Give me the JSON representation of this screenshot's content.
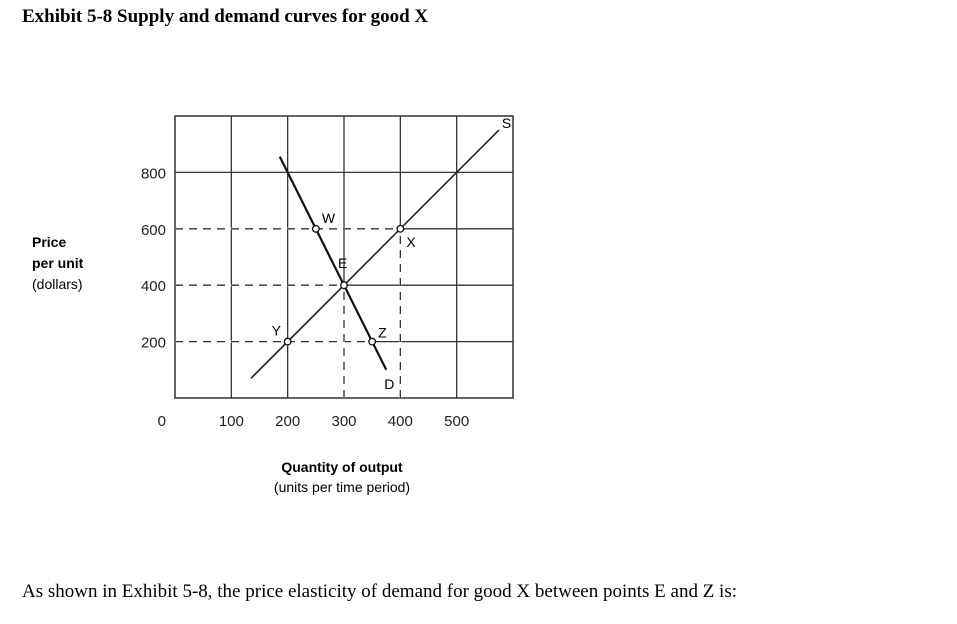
{
  "title": "Exhibit 5-8 Supply and demand curves for good X",
  "question": "As shown in Exhibit 5-8, the price elasticity of demand for good X between points E and Z is:",
  "chart_data": {
    "type": "line",
    "ylabel": [
      "Price",
      "per unit",
      "(dollars)"
    ],
    "xlabel": [
      "Quantity of output",
      "(units per time period)"
    ],
    "xlim": [
      0,
      600
    ],
    "ylim": [
      0,
      1000
    ],
    "x_ticks": [
      100,
      200,
      300,
      400,
      500
    ],
    "y_ticks": [
      200,
      400,
      600,
      800
    ],
    "origin_label": "0",
    "grid": true,
    "series": [
      {
        "name": "S",
        "points": [
          [
            135,
            70
          ],
          [
            575,
            950
          ]
        ]
      },
      {
        "name": "D",
        "points": [
          [
            186,
            856
          ],
          [
            375,
            100
          ]
        ]
      }
    ],
    "points": [
      {
        "label": "W",
        "x": 250,
        "y": 600
      },
      {
        "label": "E",
        "x": 300,
        "y": 400
      },
      {
        "label": "X",
        "x": 400,
        "y": 600
      },
      {
        "label": "Y",
        "x": 200,
        "y": 200
      },
      {
        "label": "Z",
        "x": 350,
        "y": 200
      }
    ],
    "dashed_guides": [
      {
        "y": 600,
        "x_to": 400
      },
      {
        "y": 400,
        "x_to": 300
      },
      {
        "y": 200,
        "x_to": 350
      },
      {
        "x": 300,
        "y_to": 400
      },
      {
        "x": 400,
        "y_to": 600
      }
    ]
  }
}
